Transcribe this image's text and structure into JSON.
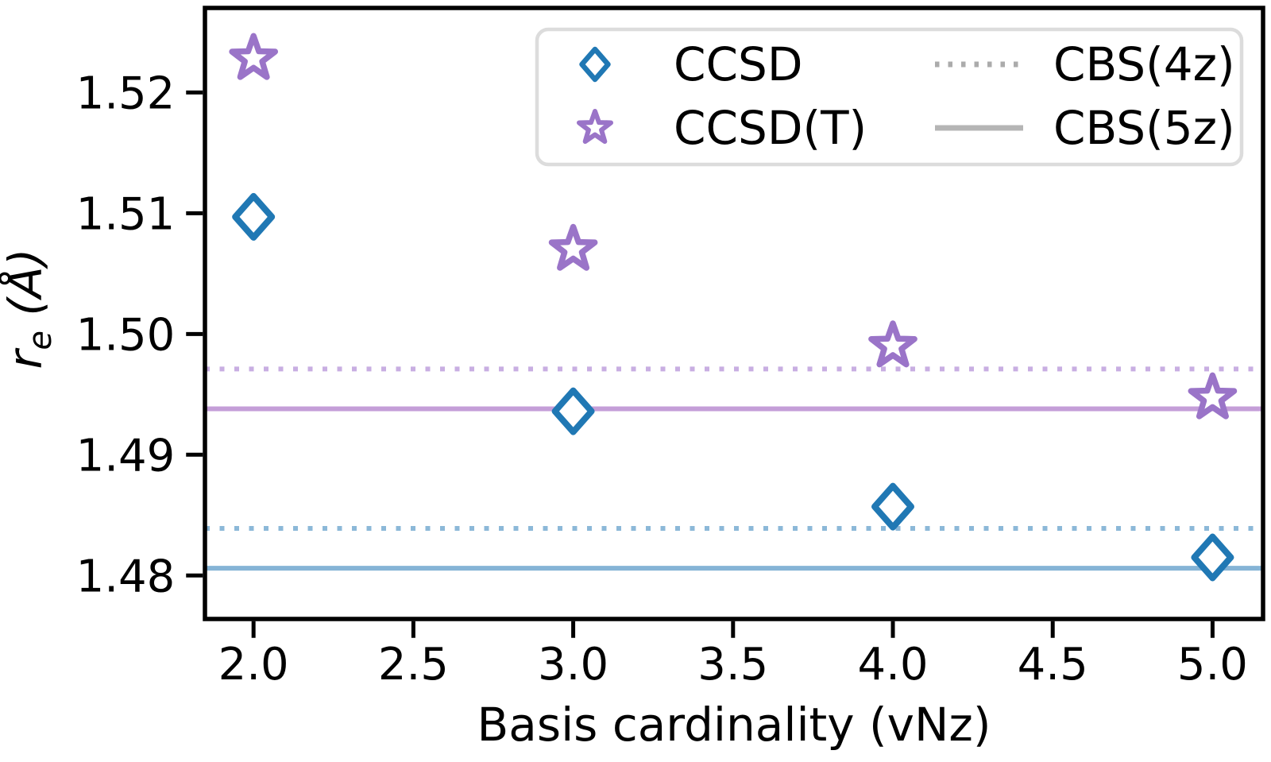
{
  "figure": {
    "background": "#ffffff",
    "text_color": "#000000"
  },
  "chart_data": {
    "type": "scatter",
    "title": "",
    "xlabel": "Basis cardinality (vNz)",
    "ylabel": "re (Å)",
    "ylabel_parts": {
      "symbol": "r",
      "subscript": "e",
      "unit": " (Å)"
    },
    "xlim": [
      1.848,
      5.158
    ],
    "ylim": [
      1.4764,
      1.527
    ],
    "grid": false,
    "x_ticks": [
      2.0,
      2.5,
      3.0,
      3.5,
      4.0,
      4.5,
      5.0
    ],
    "x_tick_labels": [
      "2.0",
      "2.5",
      "3.0",
      "3.5",
      "4.0",
      "4.5",
      "5.0"
    ],
    "y_ticks": [
      1.48,
      1.49,
      1.5,
      1.51,
      1.52
    ],
    "y_tick_labels": [
      "1.48",
      "1.49",
      "1.50",
      "1.51",
      "1.52"
    ],
    "series": [
      {
        "name": "CCSD",
        "marker": "diamond",
        "color": "#2078b4",
        "x": [
          2,
          3,
          4,
          5
        ],
        "y": [
          1.5097,
          1.4936,
          1.4857,
          1.4815
        ]
      },
      {
        "name": "CCSD(T)",
        "marker": "star",
        "color": "#9a74c8",
        "x": [
          2,
          3,
          4,
          5
        ],
        "y": [
          1.5228,
          1.507,
          1.499,
          1.4947
        ]
      }
    ],
    "reference_lines": [
      {
        "name": "CCSD(T) CBS(4z)",
        "style": "dotted",
        "color": "#c8aee2",
        "y": 1.4971
      },
      {
        "name": "CCSD(T) CBS(5z)",
        "style": "solid",
        "color": "#c49ed8",
        "y": 1.4938
      },
      {
        "name": "CCSD CBS(4z)",
        "style": "dotted",
        "color": "#8cb8d8",
        "y": 1.4839
      },
      {
        "name": "CCSD CBS(5z)",
        "style": "solid",
        "color": "#85b4d6",
        "y": 1.4806
      }
    ],
    "legend_position": "upper right",
    "legend": {
      "border_color": "#dcdcdc",
      "entries": [
        {
          "label": "CCSD",
          "swatch": "diamond",
          "color": "#2078b4"
        },
        {
          "label": "CCSD(T)",
          "swatch": "star",
          "color": "#9a74c8"
        },
        {
          "label": "CBS(4z)",
          "swatch": "dotted-line",
          "color": "#ababab"
        },
        {
          "label": "CBS(5z)",
          "swatch": "solid-line",
          "color": "#b5b5b5"
        }
      ]
    }
  }
}
